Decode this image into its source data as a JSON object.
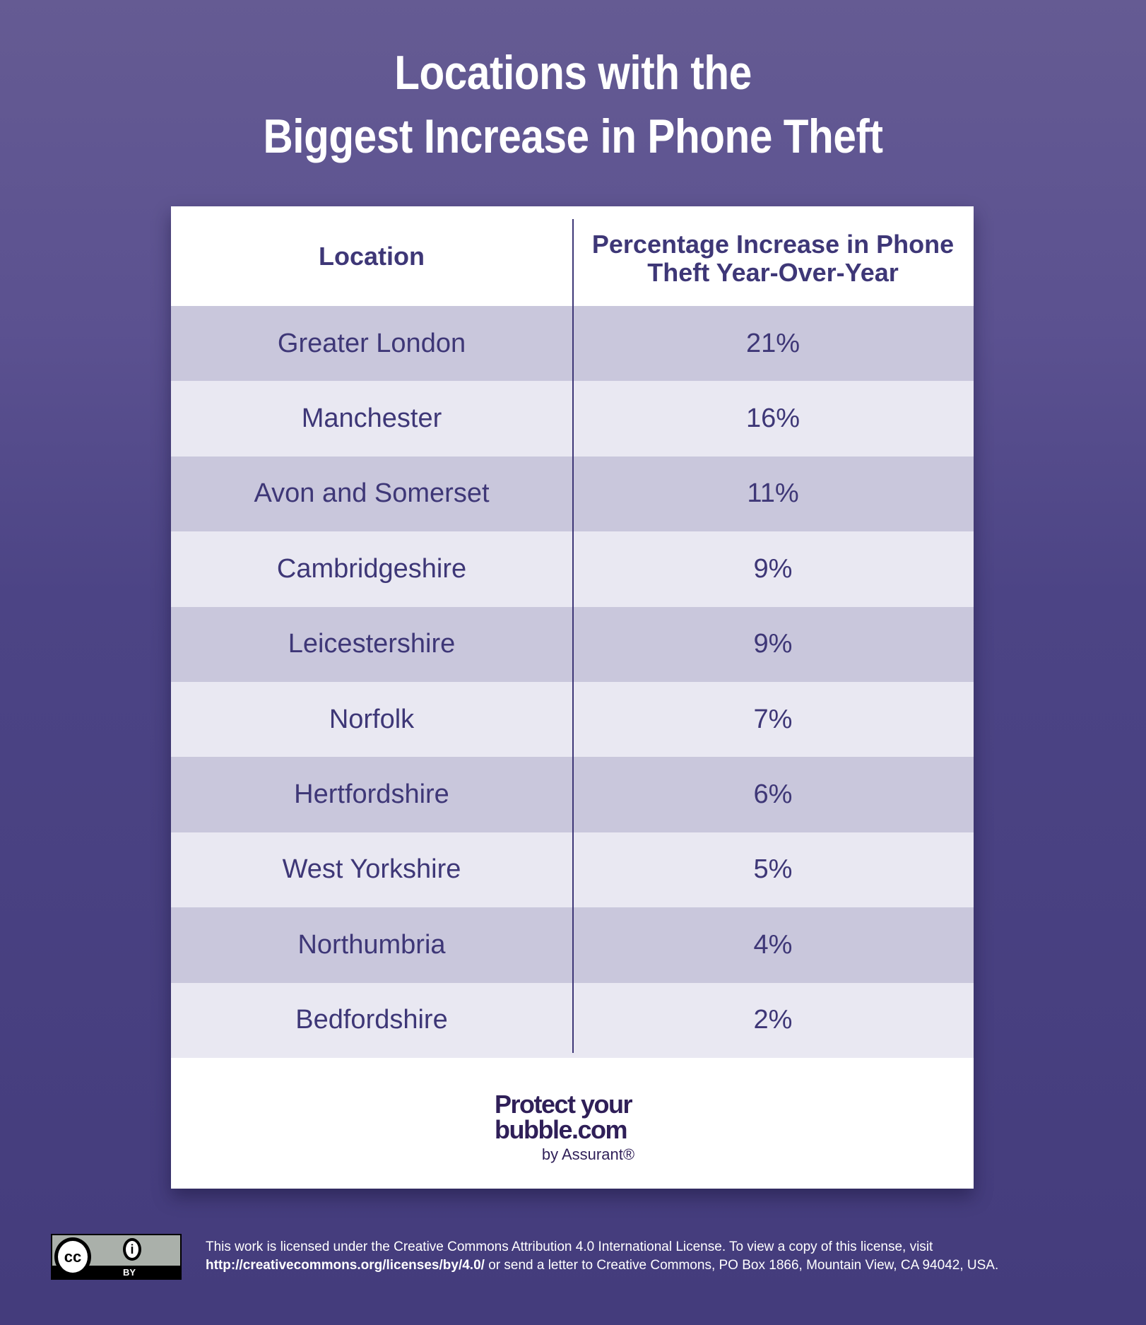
{
  "title": {
    "line1": "Locations with the",
    "line2": "Biggest Increase in Phone Theft"
  },
  "table": {
    "headers": [
      "Location",
      "Percentage Increase in Phone Theft Year-Over-Year"
    ],
    "rows": [
      {
        "location": "Greater London",
        "increase": "21%"
      },
      {
        "location": "Manchester",
        "increase": "16%"
      },
      {
        "location": "Avon and Somerset",
        "increase": "11%"
      },
      {
        "location": "Cambridgeshire",
        "increase": "9%"
      },
      {
        "location": "Leicestershire",
        "increase": "9%"
      },
      {
        "location": "Norfolk",
        "increase": "7%"
      },
      {
        "location": "Hertfordshire",
        "increase": "6%"
      },
      {
        "location": "West Yorkshire",
        "increase": "5%"
      },
      {
        "location": "Northumbria",
        "increase": "4%"
      },
      {
        "location": "Bedfordshire",
        "increase": "2%"
      }
    ]
  },
  "logo": {
    "line1": "Protect your",
    "line2": "bubble.com",
    "line3": "by Assurant®"
  },
  "license": {
    "badge_cc": "cc",
    "badge_by": "BY",
    "text1": "This work is licensed under the Creative Commons Attribution 4.0 International License. To view a copy of this license, visit",
    "link": "http://creativecommons.org/licenses/by/4.0/",
    "text2": " or send a letter to Creative Commons, PO Box 1866, Mountain View, CA 94042, USA."
  },
  "colors": {
    "text": "#3e3777",
    "row_dark": "#c9c7dc",
    "row_light": "#e9e8f2",
    "background_top": "#655b93",
    "background_bottom": "#443c7c"
  }
}
